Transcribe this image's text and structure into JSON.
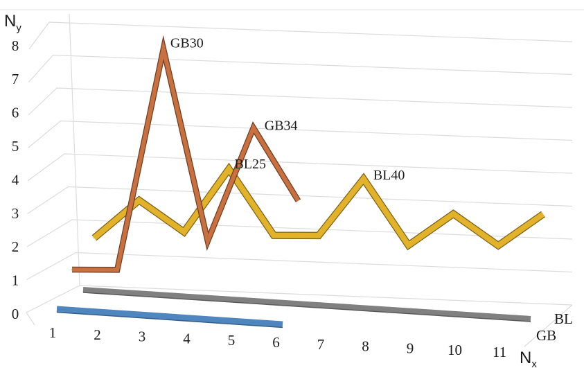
{
  "chart_data": {
    "type": "line",
    "style": "3d-ribbon",
    "ylabel": {
      "main": "N",
      "sub": "y"
    },
    "xlabel": {
      "main": "N",
      "sub": "x"
    },
    "ylim": [
      0,
      8
    ],
    "y_ticks": [
      "0",
      "1",
      "2",
      "3",
      "4",
      "5",
      "6",
      "7",
      "8"
    ],
    "x_ticks": [
      "1",
      "2",
      "3",
      "4",
      "5",
      "6",
      "7",
      "8",
      "9",
      "10",
      "11"
    ],
    "series_depth_labels": [
      "BL",
      "GB"
    ],
    "series": [
      {
        "name": "GB",
        "color": "#c8703f",
        "x": [
          1,
          2,
          3,
          4,
          5,
          6
        ],
        "values": [
          0,
          0,
          7.6,
          1,
          4.9,
          2.4
        ]
      },
      {
        "name": "BL",
        "color": "#e2b22a",
        "x": [
          1,
          2,
          3,
          4,
          5,
          6,
          7,
          8,
          9,
          10,
          11
        ],
        "values": [
          1.2,
          2.4,
          1.4,
          3.4,
          1.3,
          1.3,
          3.1,
          1,
          2,
          1,
          2
        ]
      },
      {
        "color": "#808080",
        "x": [
          1,
          11
        ],
        "values": [
          0,
          0
        ]
      },
      {
        "color": "#4f86bf",
        "x": [
          1,
          6
        ],
        "values": [
          0,
          0
        ]
      }
    ],
    "annotations": [
      {
        "text": "GB30",
        "series": "GB",
        "x": 3
      },
      {
        "text": "GB34",
        "series": "GB",
        "x": 5
      },
      {
        "text": "BL25",
        "series": "BL",
        "x": 4
      },
      {
        "text": "BL40",
        "series": "BL",
        "x": 7
      }
    ],
    "grid": true,
    "legend": "none"
  }
}
